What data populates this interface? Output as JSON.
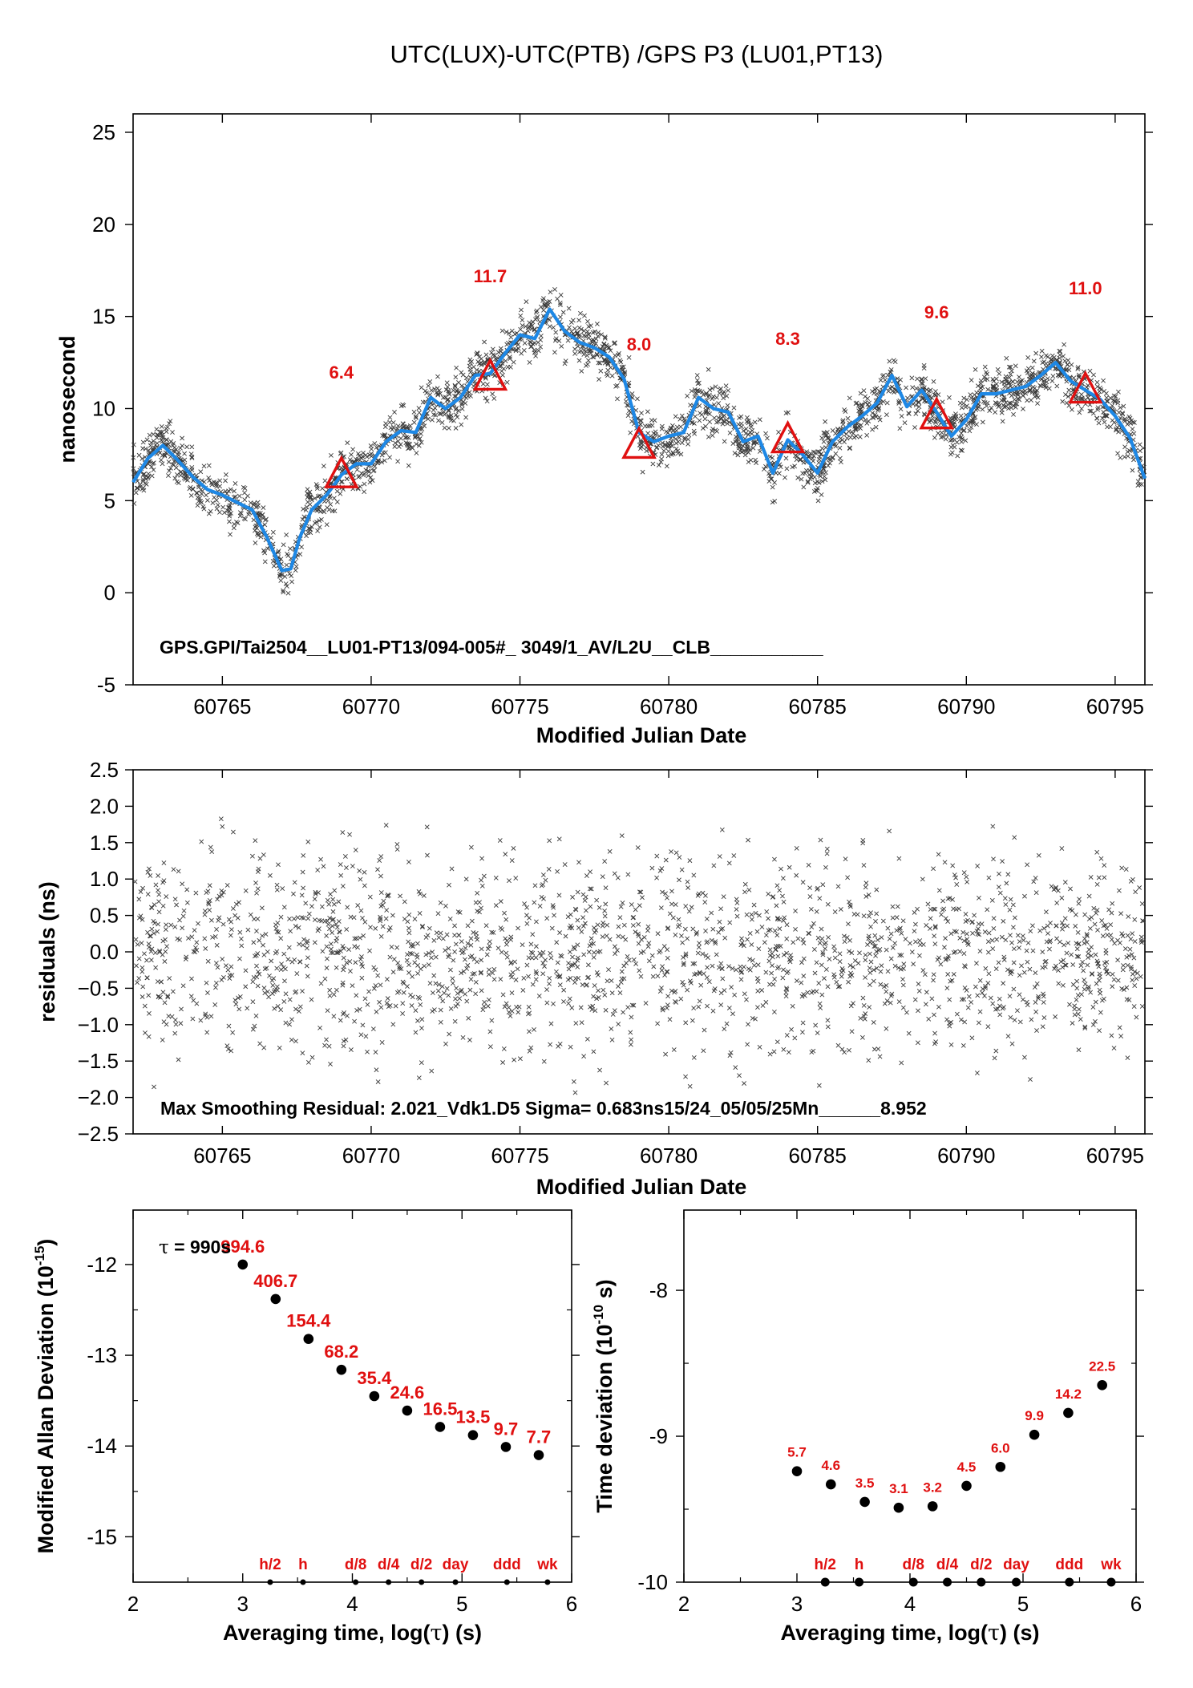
{
  "figure_title": "UTC(LUX)-UTC(PTB)  /GPS  P3  (LU01,PT13)",
  "chart_data": [
    {
      "type": "scatter",
      "panel": "top",
      "ylabel": "nanosecond",
      "xlabel": "Modified Julian Date",
      "xlim": [
        60762,
        60796
      ],
      "ylim": [
        -5,
        26
      ],
      "xticks": [
        60765,
        60770,
        60775,
        60780,
        60785,
        60790,
        60795
      ],
      "yticks": [
        -5,
        0,
        5,
        10,
        15,
        20,
        25
      ],
      "grid": false,
      "annotation": "GPS.GPI/Tai2504__LU01-PT13/094-005#_  3049/1_AV/L2U__CLB___________",
      "series": [
        {
          "role": "measurements",
          "marker": "x",
          "color": "#333333",
          "scatter": 0.7,
          "count": 3049
        },
        {
          "role": "smoothed",
          "color": "#1e88e5",
          "x": [
            60762,
            60762.5,
            60763,
            60763.5,
            60764,
            60764.5,
            60765,
            60765.5,
            60766,
            60766.5,
            60767,
            60767.3,
            60767.6,
            60768,
            60768.5,
            60769,
            60769.5,
            60770,
            60770.5,
            60771,
            60771.5,
            60772,
            60772.5,
            60773,
            60773.5,
            60774,
            60774.5,
            60775,
            60775.5,
            60776,
            60776.5,
            60777,
            60777.5,
            60778,
            60778.5,
            60779,
            60779.5,
            60780,
            60780.5,
            60781,
            60781.5,
            60782,
            60782.5,
            60783,
            60783.5,
            60784,
            60784.5,
            60785,
            60785.5,
            60786,
            60786.5,
            60787,
            60787.5,
            60788,
            60788.5,
            60789,
            60789.5,
            60790,
            60790.5,
            60791,
            60791.5,
            60792,
            60792.5,
            60793,
            60793.5,
            60794,
            60794.5,
            60795,
            60795.5,
            60796
          ],
          "y": [
            6.0,
            7.3,
            8.0,
            7.2,
            6.3,
            5.6,
            5.3,
            4.9,
            4.5,
            3.0,
            1.2,
            1.3,
            3.0,
            4.5,
            5.3,
            6.4,
            7.0,
            7.0,
            8.2,
            8.8,
            8.7,
            10.6,
            10.0,
            10.6,
            11.8,
            11.9,
            13.0,
            14.0,
            13.8,
            15.4,
            14.2,
            13.6,
            13.3,
            12.8,
            11.6,
            8.7,
            8.2,
            8.5,
            8.7,
            10.6,
            10.0,
            9.8,
            8.2,
            8.5,
            6.5,
            8.3,
            7.5,
            6.5,
            8.2,
            9.0,
            9.6,
            10.3,
            11.8,
            10.1,
            11.0,
            9.8,
            8.5,
            9.4,
            10.8,
            10.8,
            11.0,
            11.2,
            11.8,
            12.5,
            11.5,
            11.0,
            10.5,
            9.6,
            8.4,
            6.2
          ]
        },
        {
          "role": "markers",
          "marker": "triangle",
          "color": "#e01010",
          "x": [
            60769,
            60774,
            60779,
            60784,
            60789,
            60794
          ],
          "y": [
            6.4,
            11.7,
            8.0,
            8.3,
            9.6,
            11.0
          ],
          "labels": [
            "6.4",
            "11.7",
            "8.0",
            "8.3",
            "9.6",
            "11.0"
          ]
        }
      ]
    },
    {
      "type": "scatter",
      "panel": "middle",
      "ylabel": "residuals (ns)",
      "xlabel": "Modified Julian Date",
      "xlim": [
        60762,
        60796
      ],
      "ylim": [
        -2.5,
        2.5
      ],
      "xticks": [
        60765,
        60770,
        60775,
        60780,
        60785,
        60790,
        60795
      ],
      "yticks": [
        "2.5",
        "2.0",
        "1.5",
        "1.0",
        "0.5",
        "0.0",
        "−0.5",
        "−1.0",
        "−1.5",
        "−2.0",
        "−2.5"
      ],
      "grid": false,
      "annotation": "Max Smoothing Residual: 2.021_Vdk1.D5  Sigma= 0.683ns15/24_05/05/25Mn______8.952",
      "series": [
        {
          "role": "residuals",
          "marker": "x",
          "color": "#333333",
          "sigma": 0.683,
          "max_abs": 2.021,
          "count": 3049
        }
      ]
    },
    {
      "type": "scatter",
      "panel": "bottom-left",
      "ylabel": "Modified Allan Deviation",
      "ylabel_unit": "10",
      "ylabel_exp": "-15",
      "xlabel_pre": "Averaging time, log(",
      "xlabel_tau": "τ",
      "xlabel_post": ") (s)",
      "xlim": [
        2,
        6
      ],
      "ylim": [
        -15.5,
        -11.4
      ],
      "xticks": [
        2,
        3,
        4,
        5,
        6
      ],
      "yticks": [
        -12,
        -13,
        -14,
        -15
      ],
      "tau_note": "= 990s",
      "tau_symbol": "τ",
      "series": [
        {
          "x": [
            3.0,
            3.3,
            3.6,
            3.9,
            4.2,
            4.5,
            4.8,
            5.1,
            5.4,
            5.7
          ],
          "y": [
            -12.0,
            -12.38,
            -12.82,
            -13.16,
            -13.45,
            -13.61,
            -13.79,
            -13.88,
            -14.01,
            -14.1
          ],
          "labels": [
            "994.6",
            "406.7",
            "154.4",
            "68.2",
            "35.4",
            "24.6",
            "16.5",
            "13.5",
            "9.7",
            "7.7"
          ]
        }
      ],
      "markers": {
        "x": [
          3.25,
          3.55,
          4.03,
          4.33,
          4.63,
          4.94,
          5.41,
          5.78
        ],
        "labels": [
          "h/2",
          "h",
          "d/8",
          "d/4",
          "d/2",
          "day",
          "ddd",
          "wk"
        ]
      }
    },
    {
      "type": "scatter",
      "panel": "bottom-right",
      "ylabel": "Time deviation",
      "ylabel_unit": "10",
      "ylabel_exp": "-10",
      "ylabel_suffix": " s)",
      "xlabel_pre": "Averaging time, log(",
      "xlabel_tau": "τ",
      "xlabel_post": ") (s)",
      "xlim": [
        2,
        6
      ],
      "ylim": [
        -10,
        -7.45
      ],
      "xticks": [
        2,
        3,
        4,
        5,
        6
      ],
      "yticks": [
        -8,
        -9,
        -10
      ],
      "series": [
        {
          "x": [
            3.0,
            3.3,
            3.6,
            3.9,
            4.2,
            4.5,
            4.8,
            5.1,
            5.4,
            5.7
          ],
          "y": [
            -9.24,
            -9.33,
            -9.45,
            -9.49,
            -9.48,
            -9.34,
            -9.21,
            -8.99,
            -8.84,
            -8.65
          ],
          "labels": [
            "5.7",
            "4.6",
            "3.5",
            "3.1",
            "3.2",
            "4.5",
            "6.0",
            "9.9",
            "14.2",
            "22.5"
          ]
        }
      ],
      "markers": {
        "x": [
          3.25,
          3.55,
          4.03,
          4.33,
          4.63,
          4.94,
          5.41,
          5.78
        ],
        "labels": [
          "h/2",
          "h",
          "d/8",
          "d/4",
          "d/2",
          "day",
          "ddd",
          "wk"
        ]
      }
    }
  ]
}
